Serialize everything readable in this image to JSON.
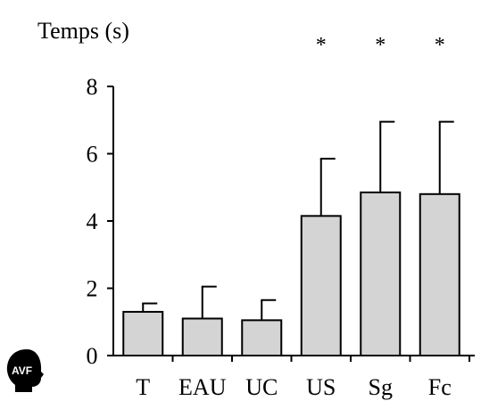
{
  "chart_data": {
    "type": "bar",
    "ylabel": "Temps (s)",
    "categories": [
      "T",
      "EAU",
      "UC",
      "US",
      "Sg",
      "Fc"
    ],
    "values": [
      1.3,
      1.1,
      1.05,
      4.15,
      4.85,
      4.8
    ],
    "error": [
      0.25,
      0.95,
      0.6,
      1.7,
      2.1,
      2.15
    ],
    "significance": [
      "",
      "",
      "",
      "*",
      "*",
      "*"
    ],
    "ylim": [
      0,
      8
    ],
    "yticks": [
      0,
      2,
      4,
      6,
      8
    ],
    "grid": false,
    "bar_color": "#d4d4d4",
    "edge_color": "#000000"
  },
  "logo": {
    "text": "AVF",
    "icon": "lightbulb-head-icon",
    "color": "#000000"
  }
}
